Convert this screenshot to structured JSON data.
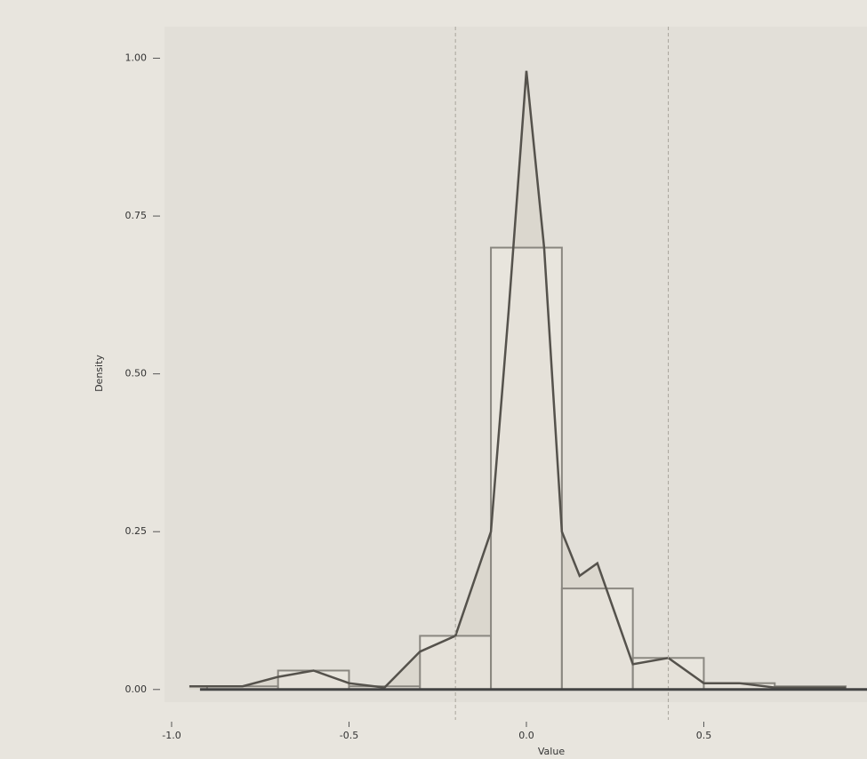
{
  "chart_data": {
    "type": "histogram",
    "ylabel": "Density",
    "xlabel": "Value",
    "bins": [
      -0.9,
      -0.7,
      -0.5,
      -0.3,
      -0.1,
      0.1,
      0.3,
      0.5,
      0.7,
      0.9
    ],
    "values": [
      0.005,
      0.03,
      0.005,
      0.085,
      0.7,
      0.16,
      0.05,
      0.01,
      0.005
    ],
    "color": "#ece9e2",
    "edge_color": "#8a8780",
    "density": {
      "x": [
        -0.95,
        -0.8,
        -0.7,
        -0.6,
        -0.5,
        -0.4,
        -0.3,
        -0.2,
        -0.1,
        -0.05,
        0,
        0.05,
        0.1,
        0.15,
        0.2,
        0.25,
        0.3,
        0.4,
        0.5,
        0.6,
        0.7,
        0.9
      ],
      "values": [
        0.005,
        0.005,
        0.02,
        0.03,
        0.01,
        0.003,
        0.06,
        0.085,
        0.25,
        0.6,
        0.98,
        0.7,
        0.25,
        0.18,
        0.2,
        0.12,
        0.04,
        0.05,
        0.01,
        0.01,
        0.003,
        0.003
      ],
      "color": "#55524c",
      "fill": "#d9d5cc"
    },
    "vlines": [
      -0.2,
      0.4
    ],
    "xlim": [
      -1.02,
      0.96
    ],
    "ylim": [
      -0.02,
      1.05
    ],
    "xticks": [
      {
        "value": -1,
        "label": "-1.0"
      },
      {
        "value": -0.5,
        "label": "-0.5"
      },
      {
        "value": 0,
        "label": "0.0"
      },
      {
        "value": 0.5,
        "label": "0.5"
      }
    ],
    "yticks": [
      {
        "value": 0,
        "label": "0.00"
      },
      {
        "value": 0.25,
        "label": "0.25"
      },
      {
        "value": 0.5,
        "label": "0.50"
      },
      {
        "value": 0.75,
        "label": "0.75"
      },
      {
        "value": 1,
        "label": "1.00"
      }
    ],
    "grid": true
  }
}
